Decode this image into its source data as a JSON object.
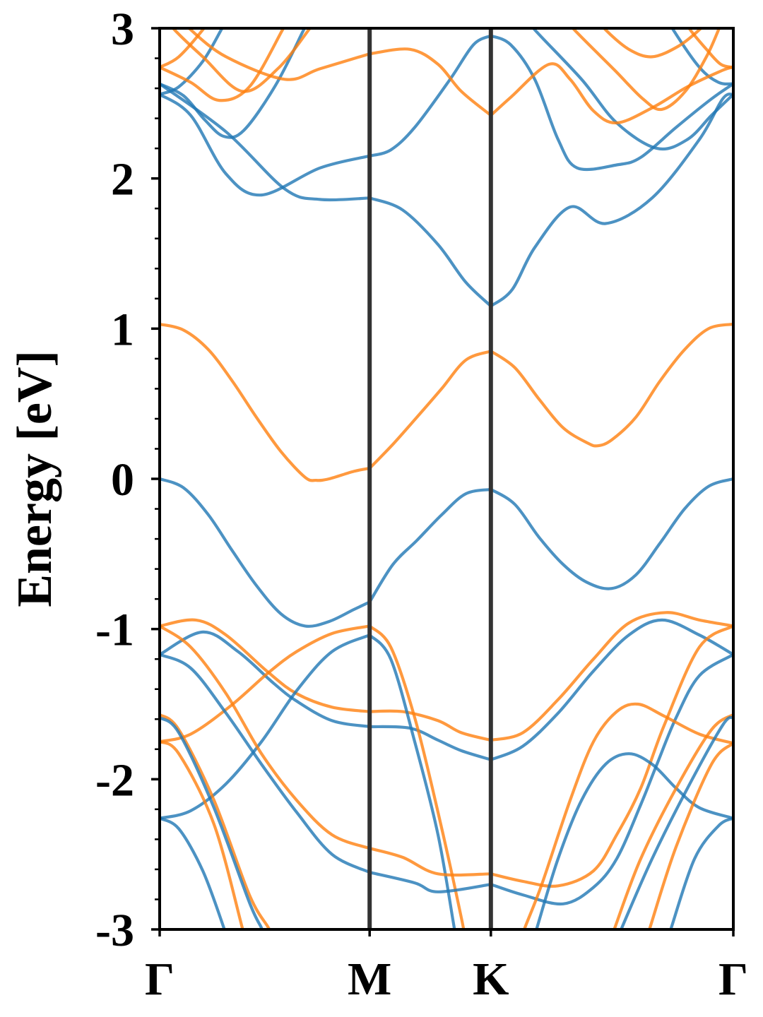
{
  "chart_data": {
    "type": "line",
    "title": "",
    "xlabel": "",
    "ylabel": "Energy [eV]",
    "ylim": [
      -3,
      3
    ],
    "xlim": [
      0,
      2.366
    ],
    "grid": false,
    "legend": "none",
    "y_ticks": [
      -3,
      -2,
      -1,
      0,
      1,
      2,
      3
    ],
    "y_tick_labels": [
      "-3",
      "-2",
      "-1",
      "0",
      "1",
      "2",
      "3"
    ],
    "y_minor_step": 0.2,
    "x_ticks": [
      0,
      0.866,
      1.366,
      2.366
    ],
    "x_tick_labels": [
      "Γ",
      "M",
      "K",
      "Γ"
    ],
    "high_symmetry_lines": [
      0.866,
      1.366
    ],
    "colors": {
      "blue": "#1f77b4",
      "orange": "#ff7f0e",
      "divider": "#333333"
    },
    "series": [
      {
        "color": "blue",
        "k": [
          0,
          0.099,
          0.201,
          0.3,
          0.399,
          0.501,
          0.6,
          0.699,
          0.801,
          0.866,
          0.962,
          1.061,
          1.163,
          1.262,
          1.366,
          1.465,
          1.565,
          1.664,
          1.763,
          1.865,
          1.964,
          2.063,
          2.165,
          2.264,
          2.366
        ],
        "E": [
          0.0,
          -0.06,
          -0.24,
          -0.48,
          -0.71,
          -0.9,
          -0.98,
          -0.95,
          -0.87,
          -0.82,
          -0.57,
          -0.41,
          -0.24,
          -0.1,
          -0.07,
          -0.17,
          -0.39,
          -0.57,
          -0.69,
          -0.73,
          -0.64,
          -0.43,
          -0.2,
          -0.05,
          0.0
        ]
      },
      {
        "color": "orange",
        "k": [
          0,
          0.099,
          0.201,
          0.3,
          0.399,
          0.501,
          0.6,
          0.646,
          0.699,
          0.801,
          0.866,
          0.962,
          1.061,
          1.163,
          1.262,
          1.366,
          1.465,
          1.565,
          1.664,
          1.763,
          1.807,
          1.865,
          1.964,
          2.063,
          2.165,
          2.264,
          2.366
        ],
        "E": [
          1.03,
          0.99,
          0.86,
          0.65,
          0.41,
          0.18,
          0.01,
          -0.01,
          0.0,
          0.05,
          0.07,
          0.23,
          0.41,
          0.6,
          0.79,
          0.85,
          0.74,
          0.53,
          0.34,
          0.24,
          0.22,
          0.26,
          0.41,
          0.65,
          0.86,
          1.0,
          1.03
        ]
      },
      {
        "color": "blue",
        "k": [
          0,
          0.274,
          0.516,
          0.661,
          0.866,
          1.002,
          1.148,
          1.262,
          1.366,
          1.454,
          1.547,
          1.693,
          1.839,
          2.031,
          2.226,
          2.322,
          2.366
        ],
        "E": [
          2.63,
          2.31,
          1.93,
          1.86,
          1.87,
          1.79,
          1.56,
          1.31,
          1.15,
          1.26,
          1.54,
          1.81,
          1.7,
          1.87,
          2.26,
          2.53,
          2.56
        ]
      },
      {
        "color": "blue",
        "k": [
          0,
          0.128,
          0.274,
          0.42,
          0.661,
          0.866,
          0.953,
          1.052,
          1.198,
          1.294,
          1.366,
          1.448,
          1.547,
          1.643,
          1.722,
          1.885,
          1.984,
          2.13,
          2.276,
          2.366
        ],
        "E": [
          2.56,
          2.42,
          2.03,
          1.89,
          2.07,
          2.15,
          2.19,
          2.34,
          2.66,
          2.89,
          2.95,
          2.89,
          2.66,
          2.26,
          2.07,
          2.09,
          2.14,
          2.34,
          2.53,
          2.63
        ]
      },
      {
        "color": "blue",
        "k": [
          0,
          0.099,
          0.186,
          0.265,
          0.347,
          0.478,
          0.594,
          0.612
        ],
        "E": [
          2.63,
          2.55,
          2.39,
          2.28,
          2.32,
          2.62,
          2.99,
          3.05
        ]
      },
      {
        "color": "blue",
        "k": [
          0,
          0.079,
          0.178,
          0.254,
          0.274
        ],
        "E": [
          2.56,
          2.61,
          2.78,
          2.99,
          3.05
        ]
      },
      {
        "color": "blue",
        "k": [
          1.527,
          1.547,
          1.74,
          1.885,
          2.051,
          2.177,
          2.276,
          2.366
        ],
        "E": [
          3.05,
          2.99,
          2.66,
          2.37,
          2.2,
          2.26,
          2.42,
          2.56
        ]
      },
      {
        "color": "blue",
        "k": [
          2.104,
          2.118,
          2.226,
          2.305,
          2.366
        ],
        "E": [
          3.05,
          2.99,
          2.74,
          2.64,
          2.63
        ]
      },
      {
        "color": "orange",
        "k": [
          0,
          0.128,
          0.245,
          0.37,
          0.507,
          0.525
        ],
        "E": [
          2.74,
          2.64,
          2.52,
          2.61,
          2.99,
          3.05
        ]
      },
      {
        "color": "orange",
        "k": [
          0,
          0.079,
          0.178,
          0.198
        ],
        "E": [
          2.74,
          2.81,
          2.99,
          3.05
        ]
      },
      {
        "color": "orange",
        "k": [
          0.041,
          0.061,
          0.178,
          0.341,
          0.487,
          0.615,
          0.638
        ],
        "E": [
          3.05,
          2.99,
          2.81,
          2.58,
          2.73,
          2.99,
          3.05
        ]
      },
      {
        "color": "orange",
        "k": [
          0.105,
          0.128,
          0.274,
          0.516,
          0.661,
          0.866,
          1.032,
          1.148,
          1.244,
          1.366,
          1.448,
          1.606,
          1.693,
          1.789,
          1.885,
          2.031,
          2.177,
          2.322,
          2.366
        ],
        "E": [
          3.05,
          2.99,
          2.81,
          2.66,
          2.73,
          2.83,
          2.86,
          2.76,
          2.58,
          2.42,
          2.54,
          2.76,
          2.66,
          2.45,
          2.37,
          2.47,
          2.61,
          2.72,
          2.74
        ]
      },
      {
        "color": "orange",
        "k": [
          1.687,
          1.71,
          1.877,
          1.993,
          2.072,
          2.168,
          2.255,
          2.305,
          2.319
        ],
        "E": [
          3.05,
          2.99,
          2.72,
          2.53,
          2.46,
          2.58,
          2.81,
          2.99,
          3.05
        ]
      },
      {
        "color": "orange",
        "k": [
          1.818,
          1.839,
          1.935,
          2.031,
          2.139,
          2.226,
          2.255
        ],
        "E": [
          3.05,
          2.99,
          2.86,
          2.81,
          2.88,
          2.99,
          3.05
        ]
      },
      {
        "color": "orange",
        "k": [
          2.168,
          2.188,
          2.255,
          2.314,
          2.366
        ],
        "E": [
          3.05,
          2.99,
          2.86,
          2.76,
          2.74
        ]
      },
      {
        "color": "orange",
        "k": [
          0,
          0.149,
          0.274,
          0.449,
          0.565,
          0.711,
          0.866,
          1.002,
          1.148,
          1.244,
          1.366,
          1.498,
          1.643,
          1.789,
          1.935,
          2.089,
          2.226,
          2.366
        ],
        "E": [
          -0.98,
          -0.94,
          -1.04,
          -1.29,
          -1.43,
          -1.52,
          -1.55,
          -1.55,
          -1.61,
          -1.69,
          -1.74,
          -1.69,
          -1.47,
          -1.2,
          -0.96,
          -0.89,
          -0.94,
          -0.98
        ]
      },
      {
        "color": "blue",
        "k": [
          0,
          0.178,
          0.323,
          0.469,
          0.565,
          0.711,
          0.866,
          1.032,
          1.148,
          1.244,
          1.366,
          1.498,
          1.643,
          1.789,
          1.935,
          2.072,
          2.226,
          2.366
        ],
        "E": [
          -1.17,
          -1.02,
          -1.15,
          -1.36,
          -1.48,
          -1.61,
          -1.65,
          -1.66,
          -1.74,
          -1.81,
          -1.87,
          -1.78,
          -1.56,
          -1.28,
          -1.04,
          -0.94,
          -1.04,
          -1.17
        ]
      },
      {
        "color": "orange",
        "k": [
          0,
          0.128,
          0.294,
          0.449,
          0.565,
          0.711,
          0.866,
          0.953,
          1.052,
          1.148,
          1.244,
          1.256
        ],
        "E": [
          -1.75,
          -1.7,
          -1.51,
          -1.29,
          -1.15,
          -1.03,
          -0.98,
          -1.12,
          -1.59,
          -2.22,
          -2.92,
          -3.04
        ]
      },
      {
        "color": "blue",
        "k": [
          0,
          0.128,
          0.274,
          0.42,
          0.565,
          0.711,
          0.866,
          0.953,
          1.052,
          1.148,
          1.215,
          1.221
        ],
        "E": [
          -2.26,
          -2.21,
          -2.03,
          -1.75,
          -1.41,
          -1.15,
          -1.04,
          -1.2,
          -1.75,
          -2.37,
          -2.99,
          -3.04
        ]
      },
      {
        "color": "orange",
        "k": [
          0,
          0.128,
          0.274,
          0.42,
          0.565,
          0.711,
          0.866,
          1.002,
          1.148,
          1.366,
          1.498,
          1.643,
          1.789,
          1.885,
          1.984,
          2.081,
          2.226,
          2.366
        ],
        "E": [
          -0.98,
          -1.12,
          -1.43,
          -1.83,
          -2.14,
          -2.37,
          -2.46,
          -2.52,
          -2.63,
          -2.63,
          -2.68,
          -2.71,
          -2.61,
          -2.37,
          -2.06,
          -1.64,
          -1.12,
          -0.98
        ]
      },
      {
        "color": "blue",
        "k": [
          0,
          0.128,
          0.274,
          0.42,
          0.565,
          0.711,
          0.866,
          1.052,
          1.148,
          1.366,
          1.498,
          1.664,
          1.789,
          1.885,
          1.984,
          2.051,
          2.13,
          2.226,
          2.366
        ],
        "E": [
          -1.17,
          -1.26,
          -1.56,
          -1.9,
          -2.22,
          -2.5,
          -2.62,
          -2.69,
          -2.75,
          -2.7,
          -2.77,
          -2.83,
          -2.72,
          -2.53,
          -2.17,
          -1.9,
          -1.59,
          -1.31,
          -1.17
        ]
      },
      {
        "color": "orange",
        "k": [
          0,
          0.079,
          0.224,
          0.37,
          0.449,
          0.457
        ],
        "E": [
          -1.57,
          -1.67,
          -2.14,
          -2.77,
          -2.99,
          -3.04
        ]
      },
      {
        "color": "blue",
        "k": [
          0,
          0.079,
          0.224,
          0.37,
          0.42,
          0.428
        ],
        "E": [
          -1.59,
          -1.69,
          -2.19,
          -2.82,
          -2.99,
          -3.04
        ]
      },
      {
        "color": "orange",
        "k": [
          0,
          0.079,
          0.224,
          0.341,
          0.35
        ],
        "E": [
          -1.75,
          -1.83,
          -2.3,
          -2.99,
          -3.04
        ]
      },
      {
        "color": "blue",
        "k": [
          0,
          0.079,
          0.178,
          0.265,
          0.274
        ],
        "E": [
          -2.26,
          -2.33,
          -2.61,
          -2.99,
          -3.04
        ]
      },
      {
        "color": "orange",
        "k": [
          1.498,
          1.506,
          1.576,
          1.693,
          1.789,
          1.885,
          1.973,
          2.081,
          2.226,
          2.366
        ],
        "E": [
          -3.04,
          -2.99,
          -2.7,
          -2.14,
          -1.75,
          -1.55,
          -1.5,
          -1.58,
          -1.7,
          -1.76
        ]
      },
      {
        "color": "blue",
        "k": [
          1.547,
          1.556,
          1.643,
          1.74,
          1.839,
          1.935,
          2.031,
          2.13,
          2.226,
          2.366
        ],
        "E": [
          -3.04,
          -2.99,
          -2.53,
          -2.14,
          -1.9,
          -1.83,
          -1.9,
          -2.06,
          -2.19,
          -2.26
        ]
      },
      {
        "color": "orange",
        "k": [
          1.868,
          1.877,
          1.984,
          2.13,
          2.276,
          2.366
        ],
        "E": [
          -3.04,
          -2.99,
          -2.53,
          -2.06,
          -1.67,
          -1.57
        ]
      },
      {
        "color": "blue",
        "k": [
          1.897,
          1.906,
          2.031,
          2.177,
          2.322,
          2.366
        ],
        "E": [
          -3.04,
          -2.99,
          -2.53,
          -2.06,
          -1.64,
          -1.59
        ]
      },
      {
        "color": "orange",
        "k": [
          2.014,
          2.022,
          2.13,
          2.276,
          2.366
        ],
        "E": [
          -3.04,
          -2.99,
          -2.45,
          -1.9,
          -1.76
        ]
      },
      {
        "color": "blue",
        "k": [
          2.101,
          2.11,
          2.206,
          2.305,
          2.366
        ],
        "E": [
          -3.04,
          -2.99,
          -2.53,
          -2.31,
          -2.26
        ]
      }
    ]
  }
}
